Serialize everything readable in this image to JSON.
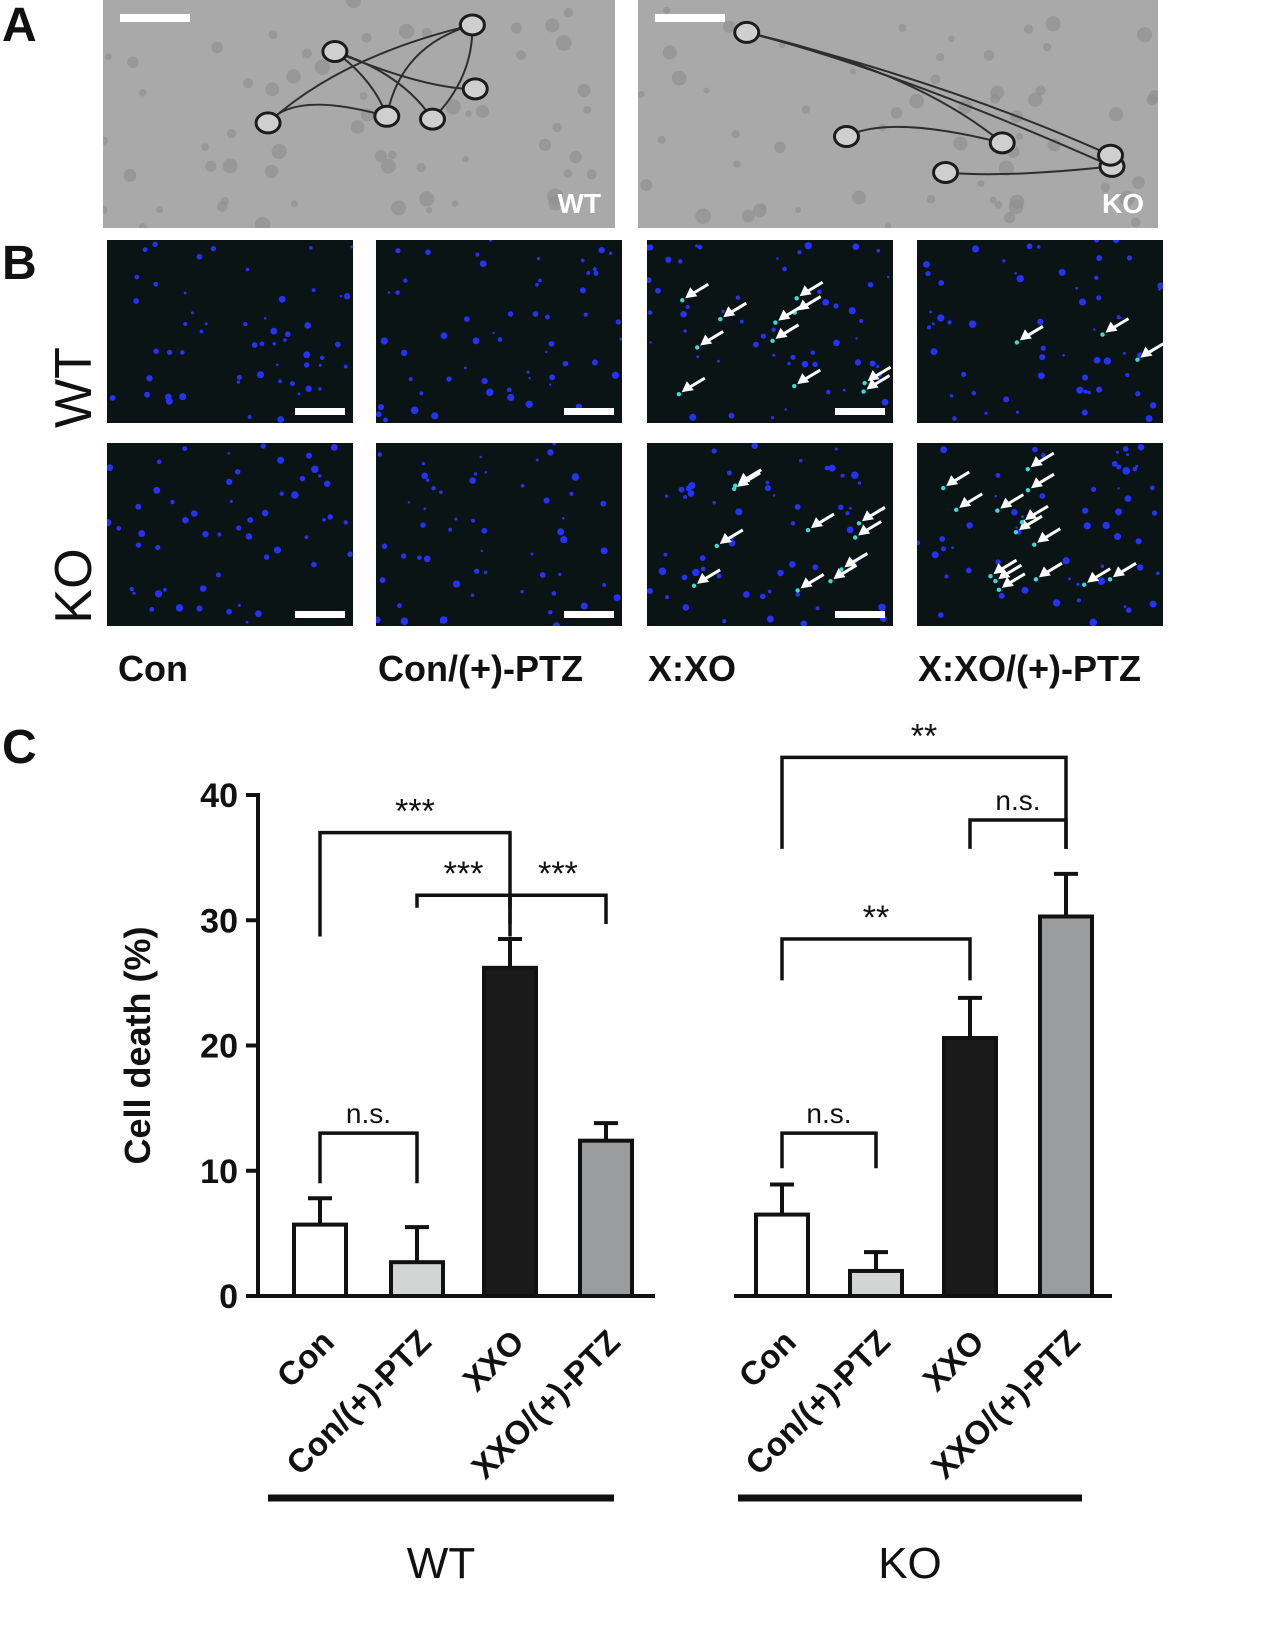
{
  "panels": {
    "a": {
      "letter": "A",
      "images": [
        {
          "label": "WT"
        },
        {
          "label": "KO"
        }
      ]
    },
    "b": {
      "letter": "B",
      "row_labels": [
        "WT",
        "KO"
      ],
      "column_labels": [
        "Con",
        "Con/(+)-PTZ",
        "X:XO",
        "X:XO/(+)-PTZ"
      ]
    },
    "c": {
      "letter": "C"
    }
  },
  "colors": {
    "brightfield": "#a9a9a9",
    "fluor_bg": "#0b1414",
    "nuclei": "#2233ff",
    "dead": "#33dddd",
    "con": "#ffffff",
    "ptz": "#d3d5d5",
    "xxo": "#1a1a1a",
    "xxo_ptz": "#9a9c9e"
  },
  "chart_data": {
    "type": "bar",
    "ylabel": "Cell death (%)",
    "ylim": [
      0,
      40
    ],
    "yticks": [
      0,
      10,
      20,
      30,
      40
    ],
    "categories": [
      "Con",
      "Con/(+)-PTZ",
      "XXO",
      "XXO/(+)-PTZ"
    ],
    "groups": [
      {
        "name": "WT",
        "values": [
          5.7,
          2.7,
          26.2,
          12.4
        ],
        "errors": [
          2.1,
          2.8,
          2.3,
          1.4
        ]
      },
      {
        "name": "KO",
        "values": [
          6.5,
          2.0,
          20.6,
          30.3
        ],
        "errors": [
          2.4,
          1.5,
          3.2,
          3.4
        ]
      }
    ],
    "significance": [
      {
        "group": 0,
        "from": 0,
        "to": 1,
        "label": "n.s."
      },
      {
        "group": 0,
        "from": 0,
        "to": 2,
        "label": "***"
      },
      {
        "group": 0,
        "from": 1,
        "to": 2,
        "label": "***"
      },
      {
        "group": 0,
        "from": 2,
        "to": 3,
        "label": "***"
      },
      {
        "group": 1,
        "from": 0,
        "to": 1,
        "label": "n.s."
      },
      {
        "group": 1,
        "from": 0,
        "to": 2,
        "label": "**"
      },
      {
        "group": 1,
        "from": 0,
        "to": 3,
        "label": "**"
      },
      {
        "group": 1,
        "from": 2,
        "to": 3,
        "label": "n.s."
      }
    ]
  }
}
